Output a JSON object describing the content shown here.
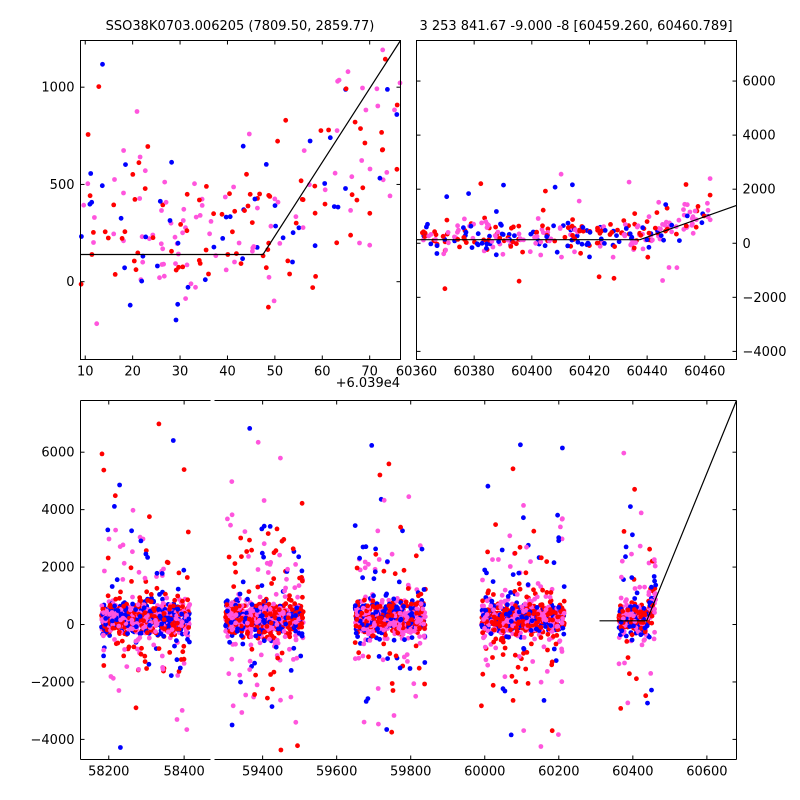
{
  "chart_data": [
    {
      "type": "scatter",
      "title": "SSO38K0703.006205 (7809.50, 2859.77)",
      "xlabel": "",
      "ylabel": "",
      "xlim": [
        60399.0,
        60466.5
      ],
      "ylim": [
        -400,
        1240
      ],
      "x_offset_label": "+6.039e4",
      "xticks": [
        60400,
        60410,
        60420,
        60430,
        60440,
        60450,
        60460
      ],
      "xtick_labels": [
        "10",
        "20",
        "30",
        "40",
        "50",
        "60",
        "70"
      ],
      "yticks": [
        0,
        500,
        1000
      ],
      "ytick_labels": [
        "0",
        "500",
        "1000"
      ],
      "grid": false,
      "series_colors": [
        "#0000ff",
        "#ff0000",
        "#ff55dd"
      ],
      "fit_line": [
        [
          60399.0,
          140
        ],
        [
          60437.5,
          140
        ],
        [
          60466.5,
          1240
        ]
      ],
      "points_seed": 11,
      "points_count": 230
    },
    {
      "type": "scatter",
      "title": "3 253 841.67 -9.000 -8 [60459.260, 60460.789]",
      "xlabel": "",
      "ylabel": "",
      "xlim": [
        60360,
        60471
      ],
      "ylim": [
        -4300,
        7500
      ],
      "xticks": [
        60360,
        60380,
        60400,
        60420,
        60440,
        60460
      ],
      "xtick_labels": [
        "60360",
        "60380",
        "60400",
        "60420",
        "60440",
        "60460"
      ],
      "yticks": [
        -4000,
        -2000,
        0,
        2000,
        4000,
        6000
      ],
      "ytick_labels": [
        "−4000",
        "−2000",
        "0",
        "2000",
        "4000",
        "6000"
      ],
      "y_axis_side": "right",
      "grid": false,
      "series_colors": [
        "#0000ff",
        "#ff0000",
        "#ff55dd"
      ],
      "fit_line": [
        [
          60360,
          130
        ],
        [
          60437.5,
          130
        ],
        [
          60471,
          1400
        ]
      ],
      "points_seed": 23,
      "points_count": 330
    },
    {
      "type": "scatter",
      "title": "",
      "xlabel": "",
      "ylabel": "",
      "broken_x_axis": true,
      "segments": [
        {
          "xlim": [
            58125,
            58470
          ],
          "xticks": [
            58200,
            58400
          ],
          "xtick_labels": [
            "58200",
            "58400"
          ]
        },
        {
          "xlim": [
            59270,
            60680
          ],
          "xticks": [
            59400,
            59600,
            59800,
            60000,
            60200,
            60400,
            60600
          ],
          "xtick_labels": [
            "59400",
            "59600",
            "59800",
            "60000",
            "60200",
            "60400",
            "60600"
          ]
        }
      ],
      "ylim": [
        -4700,
        7800
      ],
      "yticks": [
        -4000,
        -2000,
        0,
        2000,
        4000,
        6000
      ],
      "ytick_labels": [
        "−4000",
        "−2000",
        "0",
        "2000",
        "4000",
        "6000"
      ],
      "grid": false,
      "series_colors": [
        "#0000ff",
        "#ff0000",
        "#ff55dd"
      ],
      "clusters": [
        {
          "x_range": [
            58180,
            58415
          ],
          "n": 800
        },
        {
          "x_range": [
            59300,
            59510
          ],
          "n": 800
        },
        {
          "x_range": [
            59650,
            59840
          ],
          "n": 650
        },
        {
          "x_range": [
            59990,
            60215
          ],
          "n": 800
        },
        {
          "x_range": [
            60362,
            60462
          ],
          "n": 330
        }
      ],
      "fit_line": [
        [
          60310,
          130
        ],
        [
          60437.5,
          130
        ],
        [
          60680,
          7800
        ]
      ],
      "points_seed": 37
    }
  ]
}
